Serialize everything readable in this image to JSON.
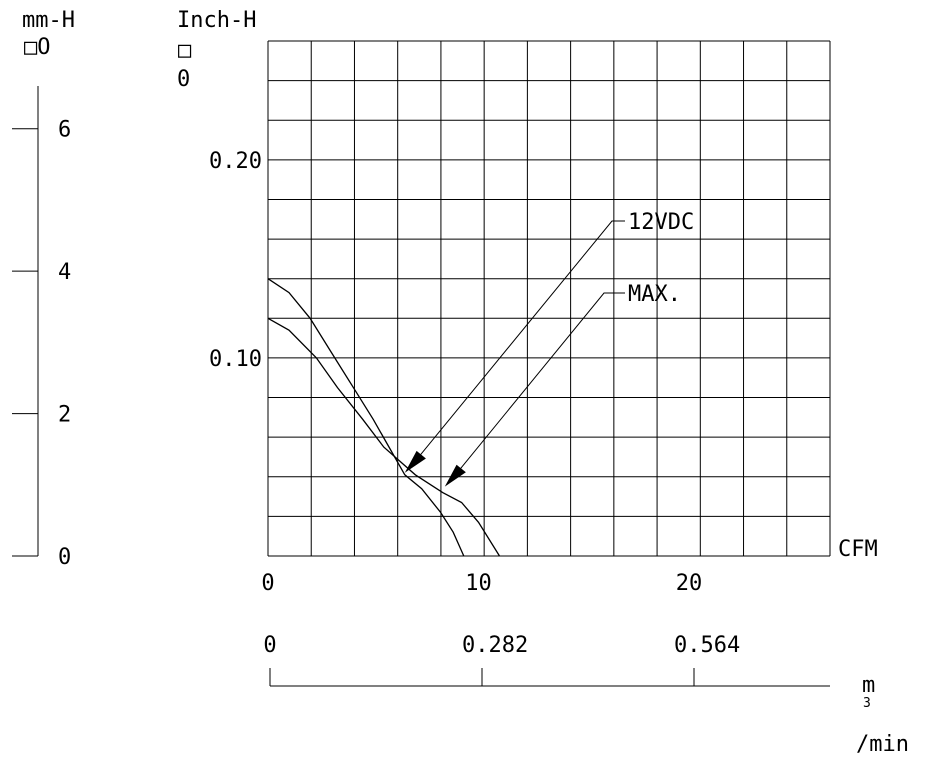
{
  "chart_data": {
    "type": "line",
    "title": "",
    "y_axis_label_line1": "Inch-H",
    "y_axis_label_line2": "□",
    "y_axis_label_line3": "O",
    "y_unit_suffix": "0",
    "x_axis_label": "CFM",
    "y_ticks": [
      "0.20",
      "0.10"
    ],
    "y_tick_values": [
      0.2,
      0.1
    ],
    "x_ticks": [
      "0",
      "10",
      "20"
    ],
    "x_tick_values": [
      0,
      10,
      20
    ],
    "xlim": [
      0,
      26.7
    ],
    "ylim": [
      0,
      0.26
    ],
    "grid": true,
    "grid_x_step": 2.05,
    "grid_y_step": 0.02,
    "series": [
      {
        "name": "12VDC",
        "x": [
          0,
          1.0,
          2.0,
          3.0,
          4.0,
          5.0,
          6.5,
          7.3,
          8.2,
          8.8,
          9.3
        ],
        "y": [
          0.14,
          0.133,
          0.12,
          0.103,
          0.086,
          0.069,
          0.041,
          0.034,
          0.022,
          0.012,
          0.0
        ]
      },
      {
        "name": "MAX.",
        "x": [
          0,
          1.0,
          2.3,
          3.3,
          4.5,
          5.5,
          7.0,
          8.3,
          9.2,
          10.0,
          11.0
        ],
        "y": [
          0.12,
          0.114,
          0.1,
          0.085,
          0.069,
          0.055,
          0.041,
          0.032,
          0.027,
          0.017,
          0.0
        ]
      }
    ],
    "annotations": [
      {
        "text": "12VDC",
        "target_series": 0,
        "target_x": 6.5,
        "target_y": 0.041
      },
      {
        "text": "MAX.",
        "target_series": 1,
        "target_x": 8.4,
        "target_y": 0.034
      }
    ],
    "mm_axis": {
      "label_line1": "mm-H",
      "label_line2": "□O",
      "ticks": [
        "6",
        "4",
        "2",
        "0"
      ],
      "tick_values": [
        6,
        4,
        2,
        0
      ],
      "max": 6.6
    },
    "m3_axis": {
      "label_line1": "m",
      "label_line2": "3",
      "label_line3": "/min",
      "ticks": [
        "0",
        "0.282",
        "0.564"
      ],
      "tick_values": [
        0,
        0.282,
        0.564
      ]
    }
  }
}
